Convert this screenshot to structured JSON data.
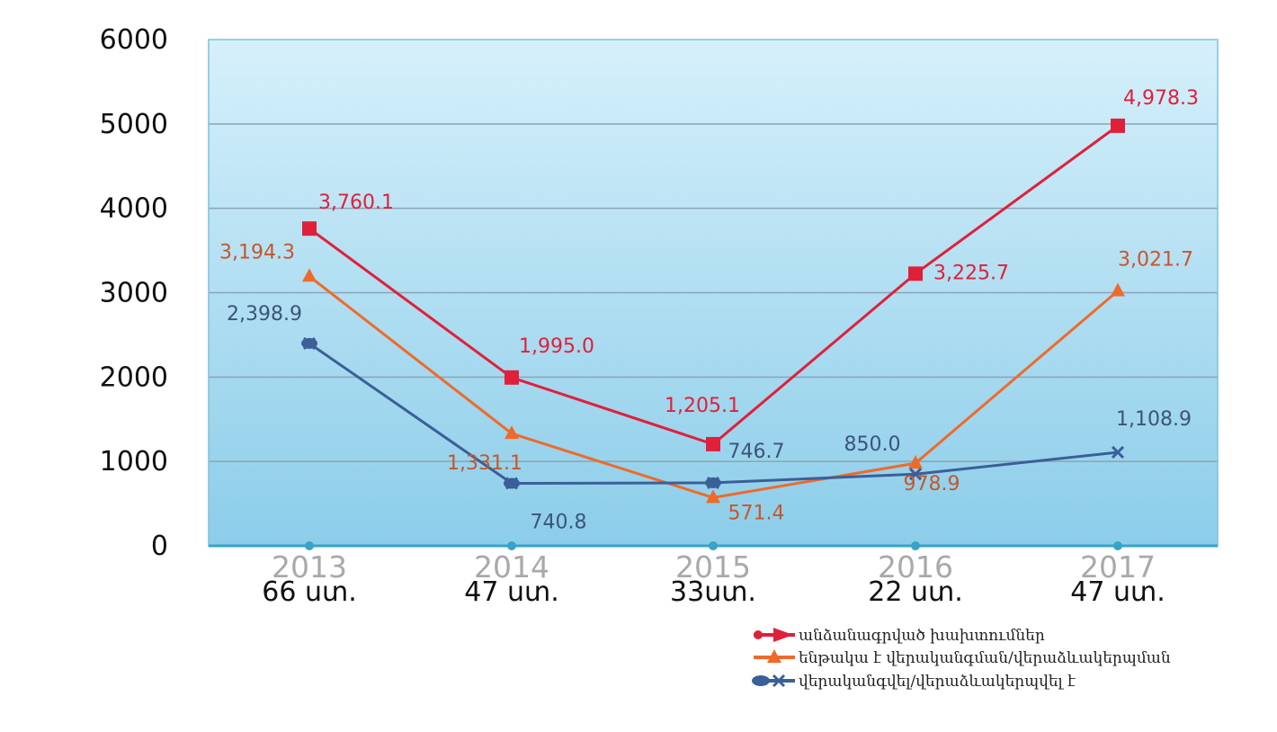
{
  "chart_data": {
    "type": "line",
    "categories": [
      "2013",
      "2014",
      "2015",
      "2016",
      "2017"
    ],
    "category_sublabels": [
      "66 ստ.",
      "47 ստ.",
      "33ստ.",
      "22 ստ.",
      "47 ստ."
    ],
    "yticks": [
      "0",
      "1000",
      "2000",
      "3000",
      "4000",
      "5000",
      "6000"
    ],
    "ylim": [
      0,
      6000
    ],
    "grid": true,
    "legend_position": "bottom-right",
    "colors": {
      "plot_top": "#d6f0fb",
      "plot_bottom": "#8ccde9",
      "grid": "#8aa5b5",
      "border": "#7cc2dc",
      "axis_markers": "#36a3c9"
    },
    "series": [
      {
        "name": "անձանագրված խախտումներ",
        "color": "#e0203a",
        "marker": "square",
        "values": [
          3760.1,
          1995.0,
          1205.1,
          3225.7,
          4978.3
        ],
        "labels": [
          "3,760.1",
          "1,995.0",
          "1,205.1",
          "3,225.7",
          "4,978.3"
        ]
      },
      {
        "name": "ենթակա է վերականգման/վերաձևակերպման",
        "color": "#ef6a2a",
        "label_color": "#c8562a",
        "marker": "triangle",
        "values": [
          3194.3,
          1331.1,
          571.4,
          978.9,
          3021.7
        ],
        "labels": [
          "3,194.3",
          "1,331.1",
          "571.4",
          "978.9",
          "3,021.7"
        ]
      },
      {
        "name": "վերականգվել/վերաձևակերպվել է",
        "color": "#3b5f98",
        "label_color": "#3b5577",
        "marker": "x",
        "values": [
          2398.9,
          740.8,
          746.7,
          850.0,
          1108.9
        ],
        "labels": [
          "2,398.9",
          "740.8",
          "746.7",
          "850.0",
          "1,108.9"
        ]
      }
    ]
  }
}
